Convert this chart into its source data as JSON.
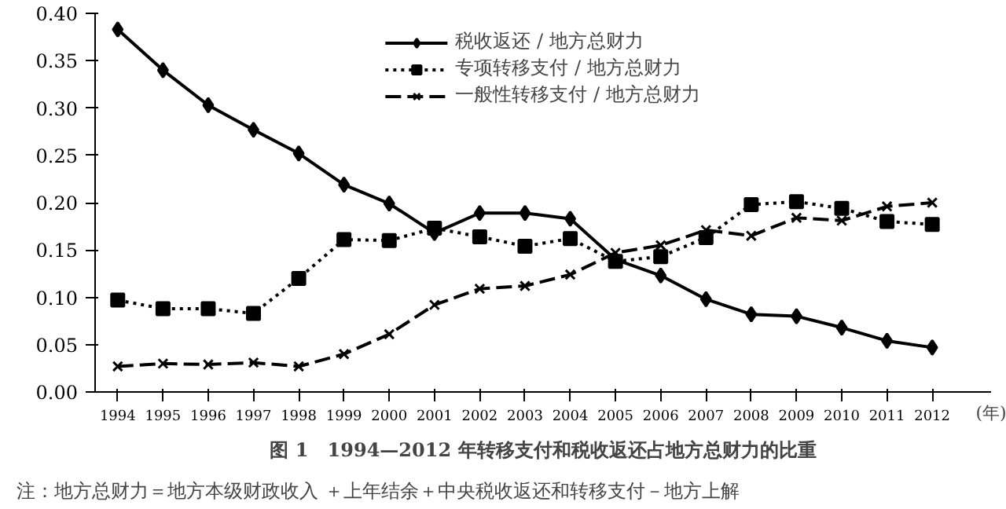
{
  "chart_data": {
    "type": "line",
    "title": "图 1　1994—2012 年转移支付和税收返还占地方总财力的比重",
    "xlabel": "(年)",
    "categories": [
      "1994",
      "1995",
      "1996",
      "1997",
      "1998",
      "1999",
      "2000",
      "2001",
      "2002",
      "2003",
      "2004",
      "2005",
      "2006",
      "2007",
      "2008",
      "2009",
      "2010",
      "2011",
      "2012"
    ],
    "series": [
      {
        "name": "税收返还 / 地方总财力",
        "color": "#000000",
        "marker": "diamond",
        "line_style": "solid",
        "values": [
          0.383,
          0.34,
          0.303,
          0.277,
          0.252,
          0.219,
          0.199,
          0.168,
          0.189,
          0.189,
          0.183,
          0.14,
          0.123,
          0.098,
          0.082,
          0.08,
          0.068,
          0.054,
          0.047
        ]
      },
      {
        "name": "专项转移支付 / 地方总财力",
        "color": "#000000",
        "marker": "square",
        "line_style": "dotted",
        "values": [
          0.097,
          0.088,
          0.088,
          0.083,
          0.12,
          0.161,
          0.16,
          0.173,
          0.164,
          0.154,
          0.162,
          0.138,
          0.143,
          0.163,
          0.198,
          0.201,
          0.194,
          0.18,
          0.177
        ]
      },
      {
        "name": "一般性转移支付 / 地方总财力",
        "color": "#000000",
        "marker": "cross",
        "line_style": "dashed",
        "values": [
          0.027,
          0.03,
          0.029,
          0.031,
          0.027,
          0.04,
          0.061,
          0.092,
          0.109,
          0.112,
          0.124,
          0.147,
          0.155,
          0.171,
          0.165,
          0.184,
          0.181,
          0.196,
          0.2
        ]
      }
    ],
    "ylim": [
      0,
      0.4
    ],
    "yticks": [
      {
        "value": 0,
        "label": "0.00"
      },
      {
        "value": 0.05,
        "label": "0.05"
      },
      {
        "value": 0.1,
        "label": "0.10"
      },
      {
        "value": 0.15,
        "label": "0.15"
      },
      {
        "value": 0.2,
        "label": "0.20"
      },
      {
        "value": 0.25,
        "label": "0.25"
      },
      {
        "value": 0.3,
        "label": "0.30"
      },
      {
        "value": 0.35,
        "label": "0.35"
      },
      {
        "value": 0.4,
        "label": "0.40"
      }
    ],
    "grid": false,
    "legend": "top",
    "annotations": [
      "注：地方总财力＝地方本级财政收入 ＋上年结余＋中央税收返还和转移支付－地方上解"
    ]
  }
}
